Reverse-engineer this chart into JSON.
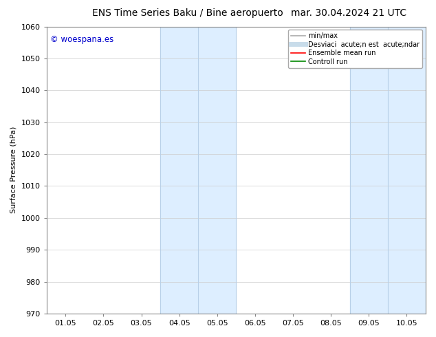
{
  "title_left": "ENS Time Series Baku / Bine aeropuerto",
  "title_right": "mar. 30.04.2024 21 UTC",
  "ylabel": "Surface Pressure (hPa)",
  "ylim": [
    970,
    1060
  ],
  "yticks": [
    970,
    980,
    990,
    1000,
    1010,
    1020,
    1030,
    1040,
    1050,
    1060
  ],
  "xlim_start": -0.5,
  "xlim_end": 9.5,
  "xtick_labels": [
    "01.05",
    "02.05",
    "03.05",
    "04.05",
    "05.05",
    "06.05",
    "07.05",
    "08.05",
    "09.05",
    "10.05"
  ],
  "xtick_positions": [
    0,
    1,
    2,
    3,
    4,
    5,
    6,
    7,
    8,
    9
  ],
  "shaded_bands": [
    {
      "xmin": 2.5,
      "xmax": 3.5,
      "color": "#ddeeff"
    },
    {
      "xmin": 3.5,
      "xmax": 4.5,
      "color": "#ddeeff"
    },
    {
      "xmin": 7.5,
      "xmax": 8.5,
      "color": "#ddeeff"
    },
    {
      "xmin": 8.5,
      "xmax": 9.5,
      "color": "#ddeeff"
    }
  ],
  "vlines": [
    {
      "x": 2.5,
      "color": "#b8d0e8",
      "lw": 0.8
    },
    {
      "x": 3.5,
      "color": "#b8d0e8",
      "lw": 0.8
    },
    {
      "x": 4.5,
      "color": "#b8d0e8",
      "lw": 0.8
    },
    {
      "x": 7.5,
      "color": "#b8d0e8",
      "lw": 0.8
    },
    {
      "x": 8.5,
      "color": "#b8d0e8",
      "lw": 0.8
    },
    {
      "x": 9.5,
      "color": "#b8d0e8",
      "lw": 0.8
    }
  ],
  "watermark_text": "© woespana.es",
  "watermark_color": "#0000cc",
  "legend_line1_label": "min/max",
  "legend_line1_color": "#aaaaaa",
  "legend_line2_label": "Desviaci  acute;n est  acute;ndar",
  "legend_line2_color": "#c8dcea",
  "legend_line3_label": "Ensemble mean run",
  "legend_line3_color": "#ff0000",
  "legend_line4_label": "Controll run",
  "legend_line4_color": "#008800",
  "bg_color": "#ffffff",
  "grid_color": "#cccccc",
  "title_fontsize": 10,
  "label_fontsize": 8,
  "tick_fontsize": 8,
  "legend_fontsize": 7
}
